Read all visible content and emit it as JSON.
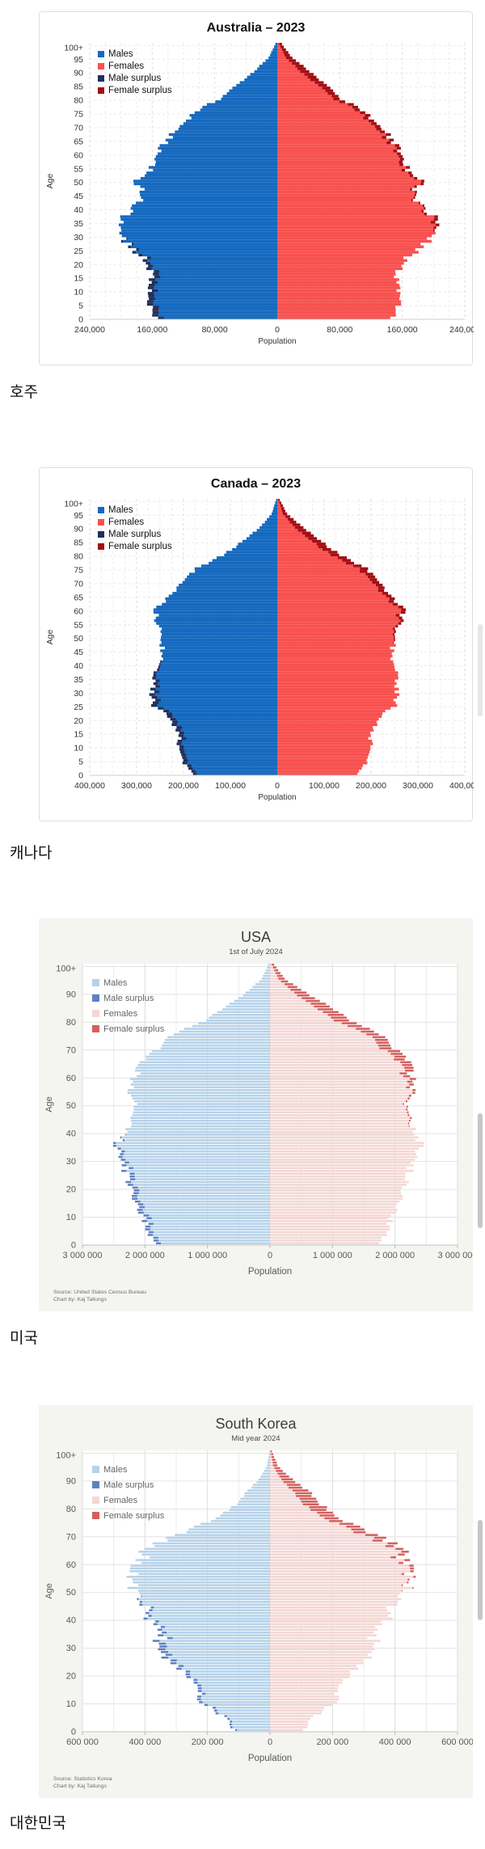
{
  "chart_data": [
    {
      "type": "bar",
      "style": "classic",
      "title": "Australia – 2023",
      "subtitle": "",
      "caption": "호주",
      "xlabel": "Population",
      "ylabel": "Age",
      "legend": [
        {
          "label": "Males",
          "color": "#1569bf"
        },
        {
          "label": "Females",
          "color": "#f8514f"
        },
        {
          "label": "Male surplus",
          "color": "#20305c"
        },
        {
          "label": "Female surplus",
          "color": "#a30e13"
        }
      ],
      "colors": {
        "male": "#1569bf",
        "female": "#f8514f",
        "male_surplus": "#20305c",
        "female_surplus": "#a30e13"
      },
      "axis": {
        "xmax": 240000,
        "xtick_step": 80000,
        "minor_step": 20000,
        "tick_format": "comma",
        "ytick_step": 5
      },
      "xtick_labels": [
        "240,000",
        "160,000",
        "80,000",
        "0",
        "80,000",
        "160,000",
        "240,000"
      ],
      "ytick_labels": [
        "0",
        "5",
        "10",
        "15",
        "20",
        "25",
        "30",
        "35",
        "40",
        "45",
        "50",
        "55",
        "60",
        "65",
        "70",
        "75",
        "80",
        "85",
        "90",
        "95",
        "100+"
      ],
      "ages": [
        0,
        5,
        10,
        15,
        20,
        25,
        30,
        35,
        40,
        45,
        50,
        55,
        60,
        65,
        70,
        75,
        80,
        85,
        90,
        95,
        100
      ],
      "male": [
        156000,
        163000,
        166000,
        159000,
        164000,
        184000,
        201000,
        202000,
        184000,
        172000,
        179000,
        160000,
        153000,
        141000,
        124000,
        107000,
        74000,
        52000,
        30000,
        11000,
        2500
      ],
      "female": [
        148000,
        155000,
        158000,
        151000,
        158000,
        180000,
        200000,
        208000,
        186000,
        174000,
        183000,
        165000,
        158000,
        147000,
        131000,
        114000,
        82000,
        63000,
        42000,
        19000,
        6000
      ],
      "wiggle": 0.035,
      "seed": 1,
      "source": []
    },
    {
      "type": "bar",
      "style": "classic",
      "title": "Canada – 2023",
      "subtitle": "",
      "caption": "캐나다",
      "xlabel": "Population",
      "ylabel": "Age",
      "legend": [
        {
          "label": "Males",
          "color": "#1569bf"
        },
        {
          "label": "Females",
          "color": "#f8514f"
        },
        {
          "label": "Male surplus",
          "color": "#20305c"
        },
        {
          "label": "Female surplus",
          "color": "#a30e13"
        }
      ],
      "colors": {
        "male": "#1569bf",
        "female": "#f8514f",
        "male_surplus": "#20305c",
        "female_surplus": "#a30e13"
      },
      "axis": {
        "xmax": 400000,
        "xtick_step": 100000,
        "minor_step": 25000,
        "tick_format": "comma",
        "ytick_step": 5
      },
      "xtick_labels": [
        "400,000",
        "300,000",
        "200,000",
        "100,000",
        "0",
        "100,000",
        "200,000",
        "300,000",
        "400,000"
      ],
      "ytick_labels": [
        "0",
        "5",
        "10",
        "15",
        "20",
        "25",
        "30",
        "35",
        "40",
        "45",
        "50",
        "55",
        "60",
        "65",
        "70",
        "75",
        "80",
        "85",
        "90",
        "95",
        "100+"
      ],
      "ages": [
        0,
        5,
        10,
        15,
        20,
        25,
        30,
        35,
        40,
        45,
        50,
        55,
        60,
        65,
        70,
        75,
        80,
        85,
        90,
        95,
        100
      ],
      "male": [
        185000,
        200000,
        210000,
        207000,
        228000,
        263000,
        270000,
        263000,
        253000,
        243000,
        246000,
        256000,
        258000,
        229000,
        201000,
        172000,
        115000,
        73000,
        37000,
        12000,
        2500
      ],
      "female": [
        176000,
        190000,
        200000,
        196000,
        216000,
        250000,
        258000,
        255000,
        250000,
        243000,
        249000,
        262000,
        268000,
        241000,
        216000,
        189000,
        134000,
        92000,
        55000,
        21000,
        5500
      ],
      "wiggle": 0.03,
      "seed": 2,
      "source": []
    },
    {
      "type": "bar",
      "style": "modern",
      "title": "USA",
      "subtitle": "1st of July 2024",
      "caption": "미국",
      "xlabel": "Population",
      "ylabel": "Age",
      "legend": [
        {
          "label": "Males",
          "color": "#b5d2ea"
        },
        {
          "label": "Male surplus",
          "color": "#5e80c2"
        },
        {
          "label": "Females",
          "color": "#f3d7d4"
        },
        {
          "label": "Female surplus",
          "color": "#d4605d"
        }
      ],
      "colors": {
        "male": "#b5d2ea",
        "female": "#f3d7d4",
        "male_surplus": "#5e80c2",
        "female_surplus": "#d4605d"
      },
      "axis": {
        "xmax": 3000000,
        "xtick_step": 1000000,
        "minor_step": 500000,
        "tick_format": "space",
        "ytick_step": 10
      },
      "xtick_labels": [
        "3 000 000",
        "2 000 000",
        "1 000 000",
        "0",
        "1 000 000",
        "2 000 000",
        "3 000 000"
      ],
      "ytick_labels": [
        "0",
        "10",
        "20",
        "30",
        "40",
        "50",
        "60",
        "70",
        "80",
        "90",
        "100+"
      ],
      "ages": [
        0,
        5,
        10,
        15,
        20,
        25,
        30,
        35,
        40,
        45,
        50,
        55,
        60,
        65,
        70,
        75,
        80,
        85,
        90,
        95,
        100
      ],
      "male": [
        1850000,
        1950000,
        2050000,
        2200000,
        2250000,
        2300000,
        2350000,
        2480000,
        2300000,
        2250000,
        2150000,
        2250000,
        2150000,
        2050000,
        1800000,
        1550000,
        1050000,
        700000,
        380000,
        130000,
        30000
      ],
      "female": [
        1770000,
        1870000,
        1960000,
        2110000,
        2160000,
        2220000,
        2280000,
        2430000,
        2300000,
        2280000,
        2170000,
        2300000,
        2260000,
        2220000,
        2000000,
        1750000,
        1300000,
        950000,
        570000,
        230000,
        70000
      ],
      "wiggle": 0.03,
      "seed": 3,
      "source": [
        "Source: United States Census Bureau",
        "Chart by: Kaj Tallungs"
      ]
    },
    {
      "type": "bar",
      "style": "modern",
      "title": "South Korea",
      "subtitle": "Mid year 2024",
      "caption": "대한민국",
      "xlabel": "Population",
      "ylabel": "Age",
      "legend": [
        {
          "label": "Males",
          "color": "#b5d2ea"
        },
        {
          "label": "Male surplus",
          "color": "#5e80c2"
        },
        {
          "label": "Females",
          "color": "#f3d7d4"
        },
        {
          "label": "Female surplus",
          "color": "#d4605d"
        }
      ],
      "colors": {
        "male": "#b5d2ea",
        "female": "#f3d7d4",
        "male_surplus": "#5e80c2",
        "female_surplus": "#d4605d"
      },
      "axis": {
        "xmax": 600000,
        "xtick_step": 200000,
        "minor_step": 100000,
        "tick_format": "space",
        "ytick_step": 10
      },
      "xtick_labels": [
        "600 000",
        "400 000",
        "200 000",
        "0",
        "200 000",
        "400 000",
        "600 000"
      ],
      "ytick_labels": [
        "0",
        "10",
        "20",
        "30",
        "40",
        "50",
        "60",
        "70",
        "80",
        "90",
        "100+"
      ],
      "ages": [
        0,
        5,
        10,
        15,
        20,
        25,
        30,
        35,
        40,
        45,
        50,
        55,
        60,
        65,
        70,
        75,
        80,
        85,
        90,
        95,
        100
      ],
      "male": [
        115000,
        150000,
        225000,
        235000,
        260000,
        320000,
        365000,
        340000,
        390000,
        400000,
        440000,
        455000,
        415000,
        400000,
        300000,
        195000,
        120000,
        78000,
        35000,
        10000,
        2000
      ],
      "female": [
        109000,
        142000,
        213000,
        222000,
        247000,
        300000,
        340000,
        325000,
        378000,
        390000,
        442000,
        462000,
        430000,
        425000,
        340000,
        240000,
        175000,
        130000,
        70000,
        25000,
        6000
      ],
      "wiggle": 0.06,
      "seed": 4,
      "source": [
        "Source: Statistics Korea",
        "Chart by: Kaj Tallungs"
      ]
    }
  ]
}
